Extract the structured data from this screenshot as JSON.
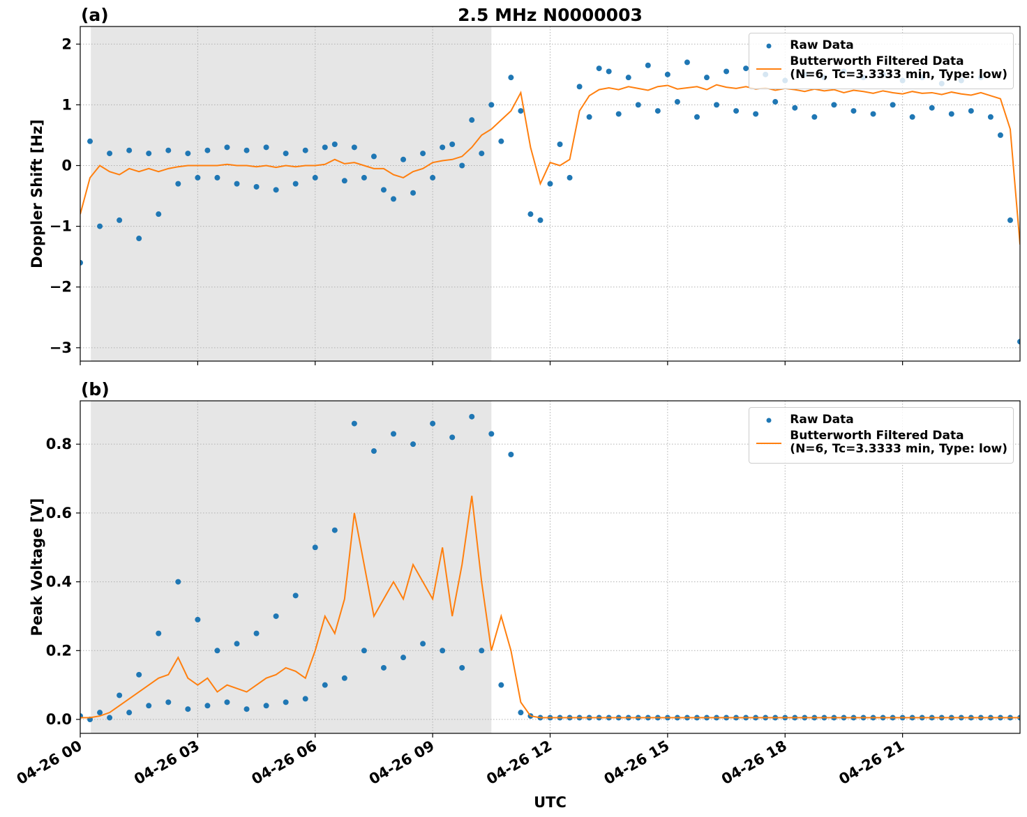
{
  "chart_data": [
    {
      "type": "line",
      "title": "2.5 MHz N0000003",
      "panel_label": "(a)",
      "ylabel": "Doppler Shift [Hz]",
      "xlim": [
        0,
        24
      ],
      "ylim": [
        -3.22,
        2.29
      ],
      "yticks": [
        {
          "value": -3,
          "label": "−3"
        },
        {
          "value": -2,
          "label": "−2"
        },
        {
          "value": -1,
          "label": "−1"
        },
        0,
        1,
        2
      ],
      "grid": true,
      "legend": "upper right",
      "shaded_span": [
        0.27,
        10.5
      ],
      "x": [
        0,
        0.25,
        0.5,
        0.75,
        1,
        1.25,
        1.5,
        1.75,
        2,
        2.25,
        2.5,
        2.75,
        3,
        3.25,
        3.5,
        3.75,
        4,
        4.25,
        4.5,
        4.75,
        5,
        5.25,
        5.5,
        5.75,
        6,
        6.25,
        6.5,
        6.75,
        7,
        7.25,
        7.5,
        7.75,
        8,
        8.25,
        8.5,
        8.75,
        9,
        9.25,
        9.5,
        9.75,
        10,
        10.25,
        10.5,
        10.75,
        11,
        11.25,
        11.5,
        11.75,
        12,
        12.25,
        12.5,
        12.75,
        13,
        13.25,
        13.5,
        13.75,
        14,
        14.25,
        14.5,
        14.75,
        15,
        15.25,
        15.5,
        15.75,
        16,
        16.25,
        16.5,
        16.75,
        17,
        17.25,
        17.5,
        17.75,
        18,
        18.25,
        18.5,
        18.75,
        19,
        19.25,
        19.5,
        19.75,
        20,
        20.25,
        20.5,
        20.75,
        21,
        21.25,
        21.5,
        21.75,
        22,
        22.25,
        22.5,
        22.75,
        23,
        23.25,
        23.5,
        23.75,
        24
      ],
      "series": [
        {
          "name": "Raw Data",
          "kind": "scatter",
          "color": "#1f77b4",
          "values": [
            -1.6,
            0.4,
            -1.0,
            0.2,
            -0.9,
            0.25,
            -1.2,
            0.2,
            -0.8,
            0.25,
            -0.3,
            0.2,
            -0.2,
            0.25,
            -0.2,
            0.3,
            -0.3,
            0.25,
            -0.35,
            0.3,
            -0.4,
            0.2,
            -0.3,
            0.25,
            -0.2,
            0.3,
            0.35,
            -0.25,
            0.3,
            -0.2,
            0.15,
            -0.4,
            -0.55,
            0.1,
            -0.45,
            0.2,
            -0.2,
            0.3,
            0.35,
            0.0,
            0.75,
            0.2,
            1.0,
            0.4,
            1.45,
            0.9,
            -0.8,
            -0.9,
            -0.3,
            0.35,
            -0.2,
            1.3,
            0.8,
            1.6,
            1.55,
            0.85,
            1.45,
            1.0,
            1.65,
            0.9,
            1.5,
            1.05,
            1.7,
            0.8,
            1.45,
            1.0,
            1.55,
            0.9,
            1.6,
            0.85,
            1.5,
            1.05,
            1.4,
            0.95,
            1.5,
            0.8,
            1.45,
            1.0,
            1.55,
            0.9,
            1.45,
            0.85,
            1.5,
            1.0,
            1.4,
            0.8,
            1.45,
            0.95,
            1.35,
            0.85,
            1.4,
            0.9,
            1.45,
            0.8,
            0.5,
            -0.9,
            -2.9
          ]
        },
        {
          "name": "Butterworth Filtered Data\n(N=6, Tc=3.3333 min, Type: low)",
          "kind": "line",
          "color": "#ff7f0e",
          "values": [
            -0.8,
            -0.2,
            0.0,
            -0.1,
            -0.15,
            -0.05,
            -0.1,
            -0.05,
            -0.1,
            -0.05,
            -0.02,
            0.0,
            0.0,
            0.0,
            0.0,
            0.02,
            0.0,
            0.0,
            -0.02,
            0.0,
            -0.03,
            0.0,
            -0.02,
            0.0,
            0.0,
            0.02,
            0.1,
            0.03,
            0.05,
            0.0,
            -0.05,
            -0.05,
            -0.15,
            -0.2,
            -0.1,
            -0.05,
            0.05,
            0.08,
            0.1,
            0.15,
            0.3,
            0.5,
            0.6,
            0.75,
            0.9,
            1.2,
            0.3,
            -0.3,
            0.05,
            0.0,
            0.1,
            0.9,
            1.15,
            1.25,
            1.28,
            1.25,
            1.3,
            1.27,
            1.24,
            1.3,
            1.32,
            1.26,
            1.28,
            1.3,
            1.25,
            1.33,
            1.29,
            1.27,
            1.3,
            1.26,
            1.28,
            1.24,
            1.27,
            1.25,
            1.22,
            1.26,
            1.23,
            1.25,
            1.2,
            1.24,
            1.22,
            1.19,
            1.23,
            1.2,
            1.18,
            1.22,
            1.19,
            1.2,
            1.17,
            1.21,
            1.18,
            1.16,
            1.2,
            1.15,
            1.1,
            0.6,
            -1.3
          ]
        }
      ]
    },
    {
      "type": "line",
      "panel_label": "(b)",
      "ylabel": "Peak Voltage [V]",
      "xlabel": "UTC",
      "xlim": [
        0,
        24
      ],
      "ylim": [
        -0.0405,
        0.926
      ],
      "xticks": [
        {
          "value": 0,
          "label": "04-26 00"
        },
        {
          "value": 3,
          "label": "04-26 03"
        },
        {
          "value": 6,
          "label": "04-26 06"
        },
        {
          "value": 9,
          "label": "04-26 09"
        },
        {
          "value": 12,
          "label": "04-26 12"
        },
        {
          "value": 15,
          "label": "04-26 15"
        },
        {
          "value": 18,
          "label": "04-26 18"
        },
        {
          "value": 21,
          "label": "04-26 21"
        }
      ],
      "yticks": [
        {
          "value": 0,
          "label": "0.0"
        },
        0.2,
        0.4,
        0.6,
        0.8
      ],
      "grid": true,
      "legend": "upper right",
      "shaded_span": [
        0.27,
        10.5
      ],
      "x": [
        0,
        0.25,
        0.5,
        0.75,
        1,
        1.25,
        1.5,
        1.75,
        2,
        2.25,
        2.5,
        2.75,
        3,
        3.25,
        3.5,
        3.75,
        4,
        4.25,
        4.5,
        4.75,
        5,
        5.25,
        5.5,
        5.75,
        6,
        6.25,
        6.5,
        6.75,
        7,
        7.25,
        7.5,
        7.75,
        8,
        8.25,
        8.5,
        8.75,
        9,
        9.25,
        9.5,
        9.75,
        10,
        10.25,
        10.5,
        10.75,
        11,
        11.25,
        11.5,
        11.75,
        12,
        12.25,
        12.5,
        12.75,
        13,
        13.25,
        13.5,
        13.75,
        14,
        14.25,
        14.5,
        14.75,
        15,
        15.25,
        15.5,
        15.75,
        16,
        16.25,
        16.5,
        16.75,
        17,
        17.25,
        17.5,
        17.75,
        18,
        18.25,
        18.5,
        18.75,
        19,
        19.25,
        19.5,
        19.75,
        20,
        20.25,
        20.5,
        20.75,
        21,
        21.25,
        21.5,
        21.75,
        22,
        22.25,
        22.5,
        22.75,
        23,
        23.25,
        23.5,
        23.75,
        24
      ],
      "series": [
        {
          "name": "Raw Data",
          "kind": "scatter",
          "color": "#1f77b4",
          "values": [
            0.01,
            0.0,
            0.02,
            0.005,
            0.07,
            0.02,
            0.13,
            0.04,
            0.25,
            0.05,
            0.4,
            0.03,
            0.29,
            0.04,
            0.2,
            0.05,
            0.22,
            0.03,
            0.25,
            0.04,
            0.3,
            0.05,
            0.36,
            0.06,
            0.5,
            0.1,
            0.55,
            0.12,
            0.86,
            0.2,
            0.78,
            0.15,
            0.83,
            0.18,
            0.8,
            0.22,
            0.86,
            0.2,
            0.82,
            0.15,
            0.88,
            0.2,
            0.83,
            0.1,
            0.77,
            0.02,
            0.01,
            0.005,
            0.005,
            0.005,
            0.005,
            0.005,
            0.005,
            0.005,
            0.005,
            0.005,
            0.005,
            0.005,
            0.005,
            0.005,
            0.005,
            0.005,
            0.005,
            0.005,
            0.005,
            0.005,
            0.005,
            0.005,
            0.005,
            0.005,
            0.005,
            0.005,
            0.005,
            0.005,
            0.005,
            0.005,
            0.005,
            0.005,
            0.005,
            0.005,
            0.005,
            0.005,
            0.005,
            0.005,
            0.005,
            0.005,
            0.005,
            0.005,
            0.005,
            0.005,
            0.005,
            0.005,
            0.005,
            0.005,
            0.005,
            0.005,
            0.005
          ]
        },
        {
          "name": "Butterworth Filtered Data\n(N=6, Tc=3.3333 min, Type: low)",
          "kind": "line",
          "color": "#ff7f0e",
          "values": [
            0.005,
            0.005,
            0.01,
            0.02,
            0.04,
            0.06,
            0.08,
            0.1,
            0.12,
            0.13,
            0.18,
            0.12,
            0.1,
            0.12,
            0.08,
            0.1,
            0.09,
            0.08,
            0.1,
            0.12,
            0.13,
            0.15,
            0.14,
            0.12,
            0.2,
            0.3,
            0.25,
            0.35,
            0.6,
            0.45,
            0.3,
            0.35,
            0.4,
            0.35,
            0.45,
            0.4,
            0.35,
            0.5,
            0.3,
            0.45,
            0.65,
            0.4,
            0.2,
            0.3,
            0.2,
            0.05,
            0.01,
            0.005,
            0.005,
            0.005,
            0.005,
            0.005,
            0.005,
            0.005,
            0.005,
            0.005,
            0.005,
            0.005,
            0.005,
            0.005,
            0.005,
            0.005,
            0.005,
            0.005,
            0.005,
            0.005,
            0.005,
            0.005,
            0.005,
            0.005,
            0.005,
            0.005,
            0.005,
            0.005,
            0.005,
            0.005,
            0.005,
            0.005,
            0.005,
            0.005,
            0.005,
            0.005,
            0.005,
            0.005,
            0.005,
            0.005,
            0.005,
            0.005,
            0.005,
            0.005,
            0.005,
            0.005,
            0.005,
            0.005,
            0.005,
            0.005,
            0.005
          ]
        }
      ]
    }
  ]
}
